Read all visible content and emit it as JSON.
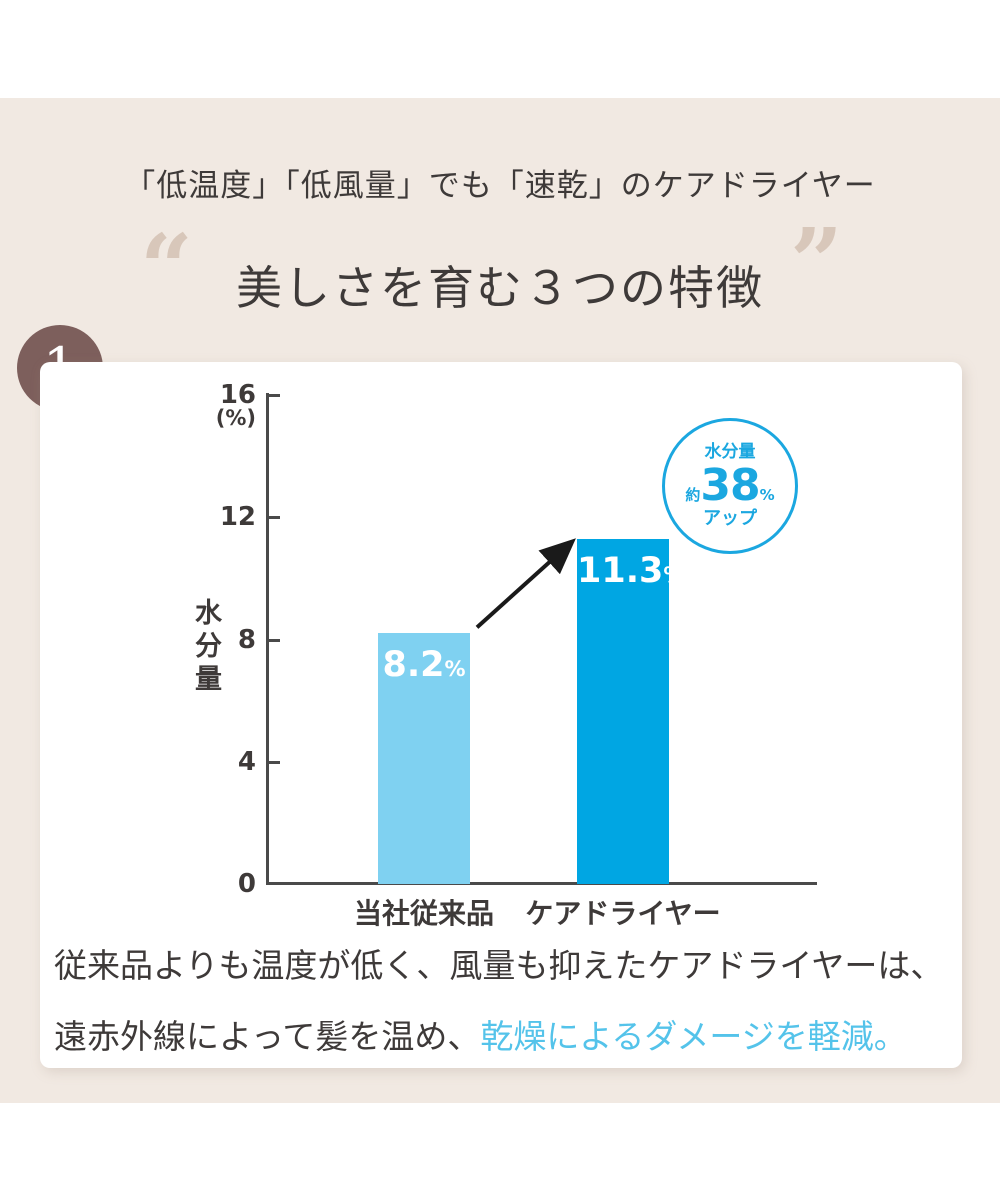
{
  "page": {
    "background": "#ffffff",
    "band_color": "#f1e9e2"
  },
  "header": {
    "subtitle": "「低温度」「低風量」でも「速乾」のケアドライヤー",
    "quote_open": "“",
    "quote_close": "”",
    "quote_color": "#d8c7ba",
    "title": "美しさを育む３つの特徴"
  },
  "section_number": "1",
  "section_number_color": "#7d5f5c",
  "chart_data": {
    "type": "bar",
    "title": "",
    "categories": [
      "当社従来品",
      "ケアドライヤー"
    ],
    "values": [
      8.2,
      11.3
    ],
    "value_labels": [
      "8.2",
      "11.3"
    ],
    "unit": "%",
    "bar_colors": [
      "#7fd1f1",
      "#00a6e3"
    ],
    "ylabel": "水分量",
    "y_unit_label": "(%)",
    "ylim": [
      0,
      16
    ],
    "yticks": [
      0,
      4,
      8,
      12,
      16
    ],
    "grid": false,
    "axis_color": "#4a4a4a",
    "arrow": true,
    "annotation": {
      "line1": "水分量",
      "prefix": "約",
      "value": "38",
      "suffix": "%",
      "line3": "アップ",
      "color": "#1ba7e0"
    }
  },
  "caption": {
    "line1": "従来品よりも温度が低く、風量も抑えたケアドライヤーは、",
    "line2_dark": "遠赤外線によって髪を温め、",
    "line2_highlight": "乾燥によるダメージを軽減。",
    "highlight_color": "#54c3ea",
    "text_color": "#3e3a39"
  }
}
